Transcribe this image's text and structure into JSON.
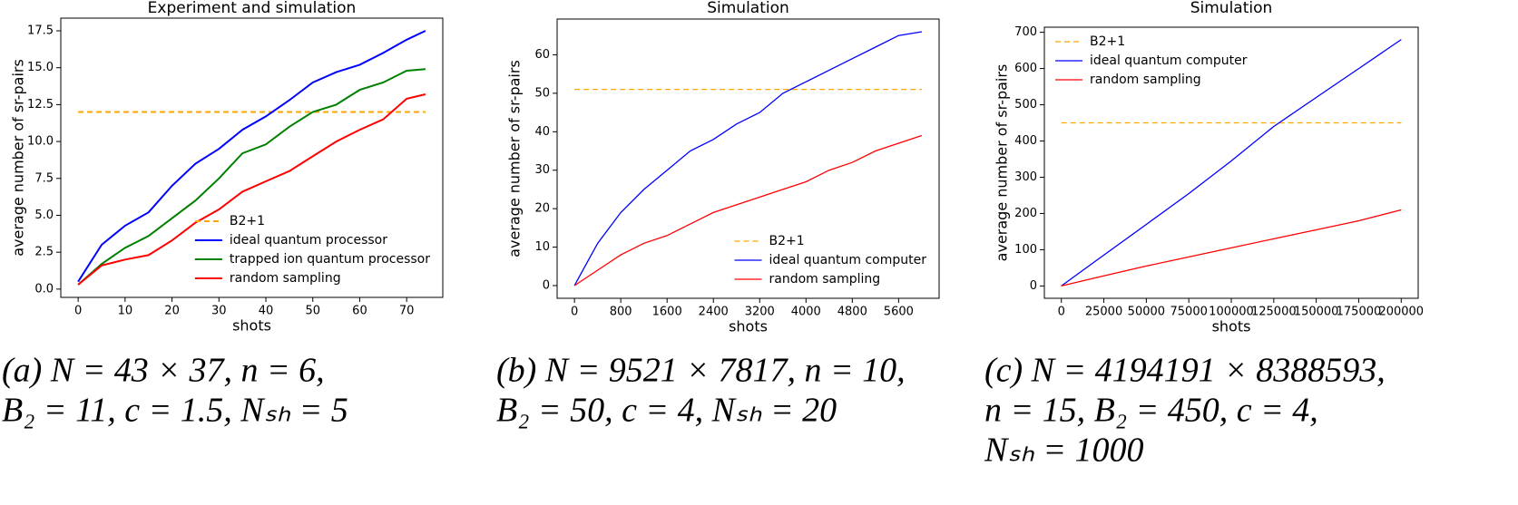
{
  "chart_data": [
    {
      "type": "line",
      "title": "Experiment and simulation",
      "xlabel": "shots",
      "ylabel": "average number of sr-pairs",
      "x": [
        0,
        5,
        10,
        15,
        20,
        25,
        30,
        35,
        40,
        45,
        50,
        55,
        60,
        65,
        70,
        74
      ],
      "xlim": [
        -3.7,
        77.7
      ],
      "xticks": [
        0,
        10,
        20,
        30,
        40,
        50,
        60,
        70
      ],
      "ylim": [
        -0.56,
        18.36
      ],
      "yticks": [
        {
          "value": 0,
          "label": "0.0"
        },
        2.5,
        {
          "value": 5,
          "label": "5.0"
        },
        7.5,
        {
          "value": 10,
          "label": "10.0"
        },
        12.5,
        {
          "value": 15,
          "label": "15.0"
        },
        17.5
      ],
      "legend": "lower right",
      "series": [
        {
          "name": "B2+1",
          "color": "#ffa500",
          "style": "dashed",
          "values": [
            12,
            12,
            12,
            12,
            12,
            12,
            12,
            12,
            12,
            12,
            12,
            12,
            12,
            12,
            12,
            12
          ]
        },
        {
          "name": "ideal quantum processor",
          "color": "#0000ff",
          "values": [
            0.5,
            3.0,
            4.3,
            5.2,
            7.0,
            8.5,
            9.5,
            10.8,
            11.7,
            12.8,
            14.0,
            14.7,
            15.2,
            16.0,
            16.9,
            17.5
          ]
        },
        {
          "name": "trapped ion quantum processor",
          "color": "#008000",
          "values": [
            0.3,
            1.7,
            2.8,
            3.6,
            4.8,
            6.0,
            7.5,
            9.2,
            9.8,
            11.0,
            12.0,
            12.5,
            13.5,
            14.0,
            14.8,
            14.9
          ]
        },
        {
          "name": "random sampling",
          "color": "#ff0000",
          "values": [
            0.3,
            1.6,
            2.0,
            2.3,
            3.3,
            4.5,
            5.4,
            6.6,
            7.3,
            8.0,
            9.0,
            10.0,
            10.8,
            11.5,
            12.9,
            13.2
          ]
        }
      ],
      "caption": [
        "(a) N = 43 × 37, n = 6,",
        "B₂ = 11, c = 1.5, Nₛₕ = 5"
      ]
    },
    {
      "type": "line",
      "title": "Simulation",
      "xlabel": "shots",
      "ylabel": "average number of sr-pairs",
      "x": [
        0,
        400,
        800,
        1200,
        1600,
        2000,
        2400,
        2800,
        3200,
        3600,
        4000,
        4400,
        4800,
        5200,
        5600,
        6000
      ],
      "xlim": [
        -300,
        6300
      ],
      "xticks": [
        0,
        800,
        1600,
        2400,
        3200,
        4000,
        4800,
        5600
      ],
      "ylim": [
        -3.3,
        69.3
      ],
      "yticks": [
        0,
        10,
        20,
        30,
        40,
        50,
        60
      ],
      "legend": "lower right",
      "series": [
        {
          "name": "B2+1",
          "color": "#ffa500",
          "style": "dashed",
          "values": [
            51,
            51,
            51,
            51,
            51,
            51,
            51,
            51,
            51,
            51,
            51,
            51,
            51,
            51,
            51,
            51
          ]
        },
        {
          "name": "ideal quantum computer",
          "color": "#0000ff",
          "values": [
            0,
            11,
            19,
            25,
            30,
            35,
            38,
            42,
            45,
            50,
            53,
            56,
            59,
            62,
            65,
            66
          ]
        },
        {
          "name": "random sampling",
          "color": "#ff0000",
          "values": [
            0,
            4,
            8,
            11,
            13,
            16,
            19,
            21,
            23,
            25,
            27,
            30,
            32,
            35,
            37,
            39
          ]
        }
      ],
      "caption": [
        "(b) N = 9521 × 7817, n = 10,",
        "B₂ = 50, c = 4, Nₛₕ = 20"
      ]
    },
    {
      "type": "line",
      "title": "Simulation",
      "xlabel": "shots",
      "ylabel": "average number of sr-pairs",
      "x": [
        0,
        25000,
        50000,
        75000,
        100000,
        125000,
        150000,
        175000,
        200000
      ],
      "xlim": [
        -10000,
        210000
      ],
      "xticks": [
        0,
        25000,
        50000,
        75000,
        100000,
        125000,
        150000,
        175000,
        200000
      ],
      "ylim": [
        -34,
        714
      ],
      "yticks": [
        0,
        100,
        200,
        300,
        400,
        500,
        600,
        700
      ],
      "legend": "upper left",
      "series": [
        {
          "name": "B2+1",
          "color": "#ffa500",
          "style": "dashed",
          "values": [
            450,
            450,
            450,
            450,
            450,
            450,
            450,
            450,
            450
          ]
        },
        {
          "name": "ideal quantum computer",
          "color": "#0000ff",
          "values": [
            0,
            85,
            170,
            255,
            345,
            440,
            520,
            600,
            680
          ]
        },
        {
          "name": "random sampling",
          "color": "#ff0000",
          "values": [
            0,
            28,
            55,
            80,
            105,
            130,
            155,
            180,
            210
          ]
        }
      ],
      "caption": [
        "(c) N = 4194191 × 8388593,",
        "n = 15, B₂ = 450, c = 4,",
        "Nₛₕ = 1000"
      ]
    }
  ]
}
